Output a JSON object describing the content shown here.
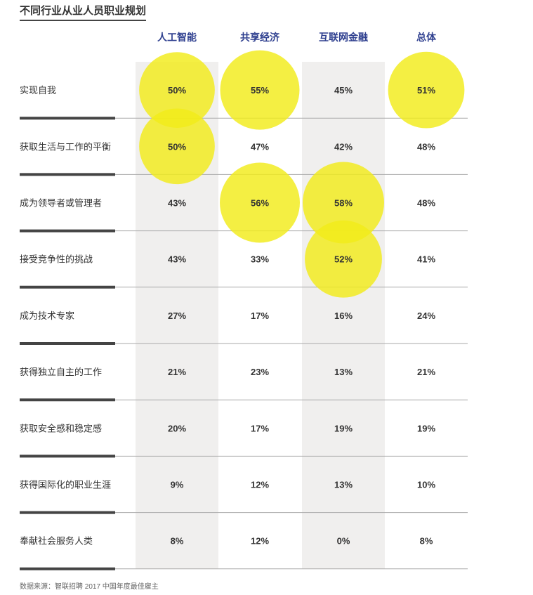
{
  "title": "不同行业从业人员职业规划",
  "source": "数据来源：智联招聘 2017 中国年度最佳雇主",
  "colors": {
    "header_text": "#2e3f8f",
    "column_band": "#f0efee",
    "bubble": "#f2ec1a",
    "row_text": "#333333",
    "rule_thick": "#444444",
    "rule_thin": "#aaaaaa"
  },
  "chart_data": {
    "type": "table",
    "encoding": "bubble area highlights the larger percentages",
    "columns": [
      "人工智能",
      "共享经济",
      "互联网金融",
      "总体"
    ],
    "rows": [
      {
        "label": "实现自我",
        "values": [
          50,
          55,
          45,
          51
        ],
        "display": [
          "50%",
          "55%",
          "45%",
          "51%"
        ]
      },
      {
        "label": "获取生活与工作的平衡",
        "values": [
          50,
          47,
          42,
          48
        ],
        "display": [
          "50%",
          "47%",
          "42%",
          "48%"
        ]
      },
      {
        "label": "成为领导者或管理者",
        "values": [
          43,
          56,
          58,
          48
        ],
        "display": [
          "43%",
          "56%",
          "58%",
          "48%"
        ]
      },
      {
        "label": "接受竞争性的挑战",
        "values": [
          43,
          33,
          52,
          41
        ],
        "display": [
          "43%",
          "33%",
          "52%",
          "41%"
        ]
      },
      {
        "label": "成为技术专家",
        "values": [
          27,
          17,
          16,
          24
        ],
        "display": [
          "27%",
          "17%",
          "16%",
          "24%"
        ]
      },
      {
        "label": "获得独立自主的工作",
        "values": [
          21,
          23,
          13,
          21
        ],
        "display": [
          "21%",
          "23%",
          "13%",
          "21%"
        ]
      },
      {
        "label": "获取安全感和稳定感",
        "values": [
          20,
          17,
          19,
          19
        ],
        "display": [
          "20%",
          "17%",
          "19%",
          "19%"
        ]
      },
      {
        "label": "获得国际化的职业生涯",
        "values": [
          9,
          12,
          13,
          10
        ],
        "display": [
          "9%",
          "12%",
          "13%",
          "10%"
        ]
      },
      {
        "label": "奉献社会服务人类",
        "values": [
          8,
          12,
          0,
          8
        ],
        "display": [
          "8%",
          "12%",
          "0%",
          "8%"
        ]
      }
    ],
    "highlighted": [
      {
        "row": 0,
        "col": 0,
        "value": 50
      },
      {
        "row": 0,
        "col": 1,
        "value": 55
      },
      {
        "row": 0,
        "col": 3,
        "value": 51
      },
      {
        "row": 1,
        "col": 0,
        "value": 50
      },
      {
        "row": 2,
        "col": 1,
        "value": 56
      },
      {
        "row": 2,
        "col": 2,
        "value": 58
      },
      {
        "row": 3,
        "col": 2,
        "value": 52
      }
    ]
  }
}
